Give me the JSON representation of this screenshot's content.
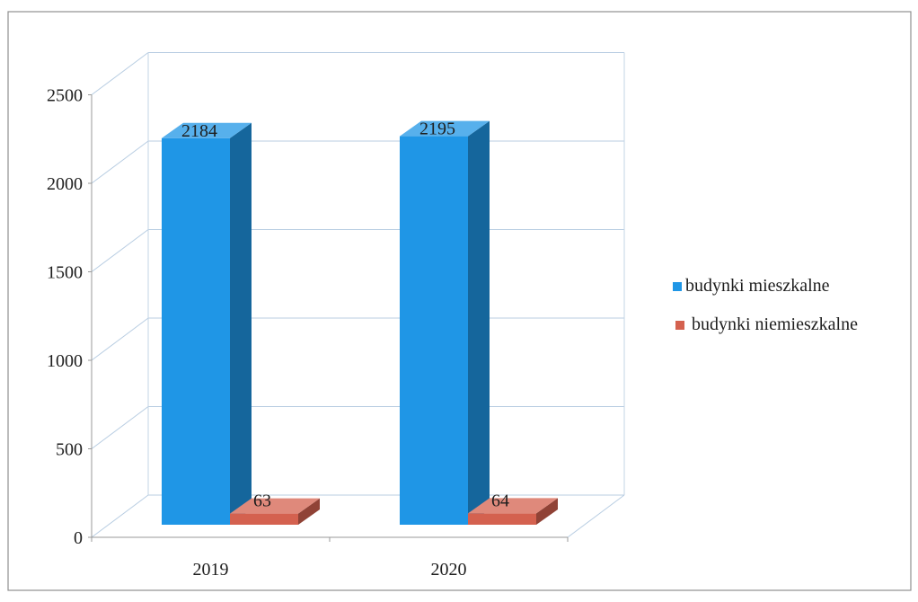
{
  "chart_data": {
    "type": "bar",
    "categories": [
      "2019",
      "2020"
    ],
    "series": [
      {
        "name": "budynki mieszkalne",
        "values": [
          2184,
          2195
        ],
        "color": "#1f96e6"
      },
      {
        "name": "budynki niemieszkalne",
        "values": [
          63,
          64
        ],
        "color": "#d4614f"
      }
    ],
    "data_labels": [
      [
        "2184",
        "2195"
      ],
      [
        "63",
        "64"
      ]
    ],
    "y_ticks": [
      "0",
      "500",
      "1000",
      "1500",
      "2000",
      "2500"
    ],
    "ylim": [
      0,
      2500
    ],
    "grid": true,
    "three_d": true,
    "legend_position": "right",
    "title": "",
    "xlabel": "",
    "ylabel": ""
  }
}
